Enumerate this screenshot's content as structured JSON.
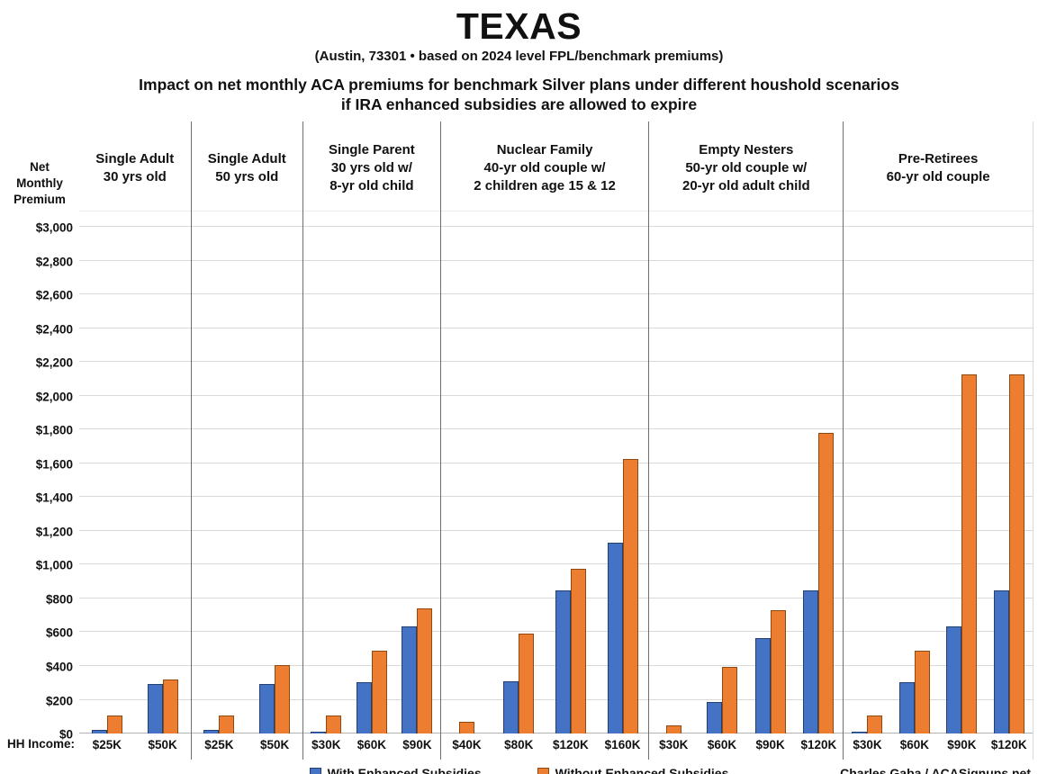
{
  "title": "TEXAS",
  "subtitle": "(Austin, 73301 • based on 2024 level FPL/benchmark premiums)",
  "heading_line1": "Impact on net monthly ACA premiums for benchmark Silver plans under different houshold scenarios",
  "heading_line2": "if IRA enhanced subsidies are allowed to expire",
  "y_axis_title_lines": [
    "Net",
    "Monthly",
    "Premium"
  ],
  "hh_income_label": "HH Income:",
  "credit": "Charles Gaba / ACASignups.net",
  "colors": {
    "with_fill": "#4472C4",
    "with_border": "#24406E",
    "without_fill": "#ED7D31",
    "without_border": "#8F4A10",
    "gridline": "#d9d9d9",
    "divider": "#6e6e6e"
  },
  "legend": [
    {
      "label": "With Enhanced Subsidies",
      "color": "#4472C4"
    },
    {
      "label": "Without Enhanced Subsidies",
      "color": "#ED7D31"
    }
  ],
  "chart_data": {
    "type": "bar",
    "title": "TEXAS — Impact on net monthly ACA premiums for benchmark Silver plans under different houshold scenarios if IRA enhanced subsidies are allowed to expire",
    "location_note": "Austin, 73301 • based on 2024 level FPL/benchmark premiums",
    "ylabel": "Net Monthly Premium",
    "xlabel": "HH Income",
    "ylim": [
      0,
      3000
    ],
    "ytick_step": 200,
    "ytick_values": [
      0,
      200,
      400,
      600,
      800,
      1000,
      1200,
      1400,
      1600,
      1800,
      2000,
      2200,
      2400,
      2600,
      2800,
      3000
    ],
    "ytick_labels": [
      "$0",
      "$200",
      "$400",
      "$600",
      "$800",
      "$1,000",
      "$1,200",
      "$1,400",
      "$1,600",
      "$1,800",
      "$2,000",
      "$2,200",
      "$2,400",
      "$2,600",
      "$2,800",
      "$3,000"
    ],
    "grid": true,
    "legend_position": "bottom",
    "series_names": [
      "With Enhanced Subsidies",
      "Without Enhanced Subsidies"
    ],
    "groups": [
      {
        "label_lines": [
          "Single Adult",
          "30 yrs old"
        ],
        "categories": [
          "$25K",
          "$50K"
        ],
        "with_enhanced": [
          20,
          295
        ],
        "without_enhanced": [
          105,
          320
        ]
      },
      {
        "label_lines": [
          "Single Adult",
          "50 yrs old"
        ],
        "categories": [
          "$25K",
          "$50K"
        ],
        "with_enhanced": [
          20,
          295
        ],
        "without_enhanced": [
          105,
          405
        ]
      },
      {
        "label_lines": [
          "Single Parent",
          "30 yrs old w/",
          "8-yr old child"
        ],
        "categories": [
          "$30K",
          "$60K",
          "$90K"
        ],
        "with_enhanced": [
          10,
          305,
          635
        ],
        "without_enhanced": [
          105,
          490,
          740
        ]
      },
      {
        "label_lines": [
          "Nuclear Family",
          "40-yr old couple w/",
          "2 children age 15 & 12"
        ],
        "categories": [
          "$40K",
          "$80K",
          "$120K",
          "$160K"
        ],
        "with_enhanced": [
          0,
          310,
          845,
          1130
        ],
        "without_enhanced": [
          70,
          590,
          975,
          1625
        ]
      },
      {
        "label_lines": [
          "Empty Nesters",
          "50-yr old couple w/",
          "20-yr old adult child"
        ],
        "categories": [
          "$30K",
          "$60K",
          "$90K",
          "$120K"
        ],
        "with_enhanced": [
          0,
          185,
          565,
          845
        ],
        "without_enhanced": [
          50,
          395,
          730,
          1780
        ]
      },
      {
        "label_lines": [
          "Pre-Retirees",
          "60-yr old couple"
        ],
        "categories": [
          "$30K",
          "$60K",
          "$90K",
          "$120K"
        ],
        "with_enhanced": [
          10,
          305,
          635,
          845
        ],
        "without_enhanced": [
          105,
          490,
          2125,
          2125
        ]
      }
    ]
  }
}
